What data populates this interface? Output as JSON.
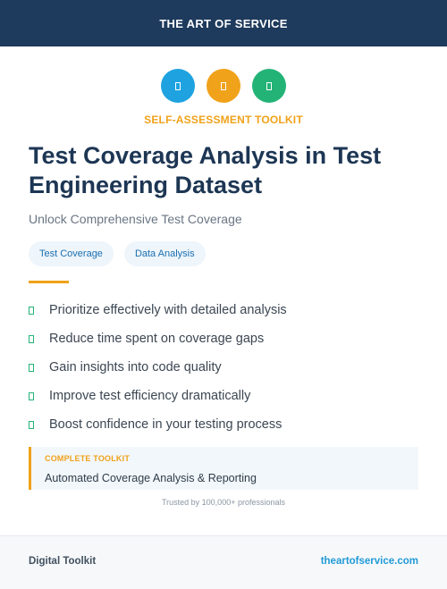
{
  "header": {
    "title": "THE ART OF SERVICE"
  },
  "icon_row": [
    {
      "name": "blue-badge-icon",
      "color": "#1ea3e0"
    },
    {
      "name": "orange-badge-icon",
      "color": "#f0a21a"
    },
    {
      "name": "green-badge-icon",
      "color": "#23b377"
    }
  ],
  "eyebrow": {
    "text": "SELF-ASSESSMENT TOOLKIT",
    "color": "#f0a21a"
  },
  "title": "Test Coverage Analysis in Test Engineering Dataset",
  "subtitle": "Unlock Comprehensive Test Coverage",
  "tags": [
    {
      "label": "Test Coverage"
    },
    {
      "label": "Data Analysis"
    }
  ],
  "features": [
    {
      "text": "Prioritize effectively with detailed analysis"
    },
    {
      "text": "Reduce time spent on coverage gaps"
    },
    {
      "text": "Gain insights into code quality"
    },
    {
      "text": "Improve test efficiency dramatically"
    },
    {
      "text": "Boost confidence in your testing process"
    }
  ],
  "callout": {
    "label": "COMPLETE TOOLKIT",
    "text": "Automated Coverage Analysis & Reporting"
  },
  "trusted_text": "Trusted by 100,000+ professionals",
  "footer": {
    "left": "Digital Toolkit",
    "right": "theartofservice.com"
  },
  "colors": {
    "navy": "#1e3a5c",
    "accent_orange": "#f0a21a",
    "accent_blue": "#1ea3e0",
    "accent_green": "#23b377"
  }
}
